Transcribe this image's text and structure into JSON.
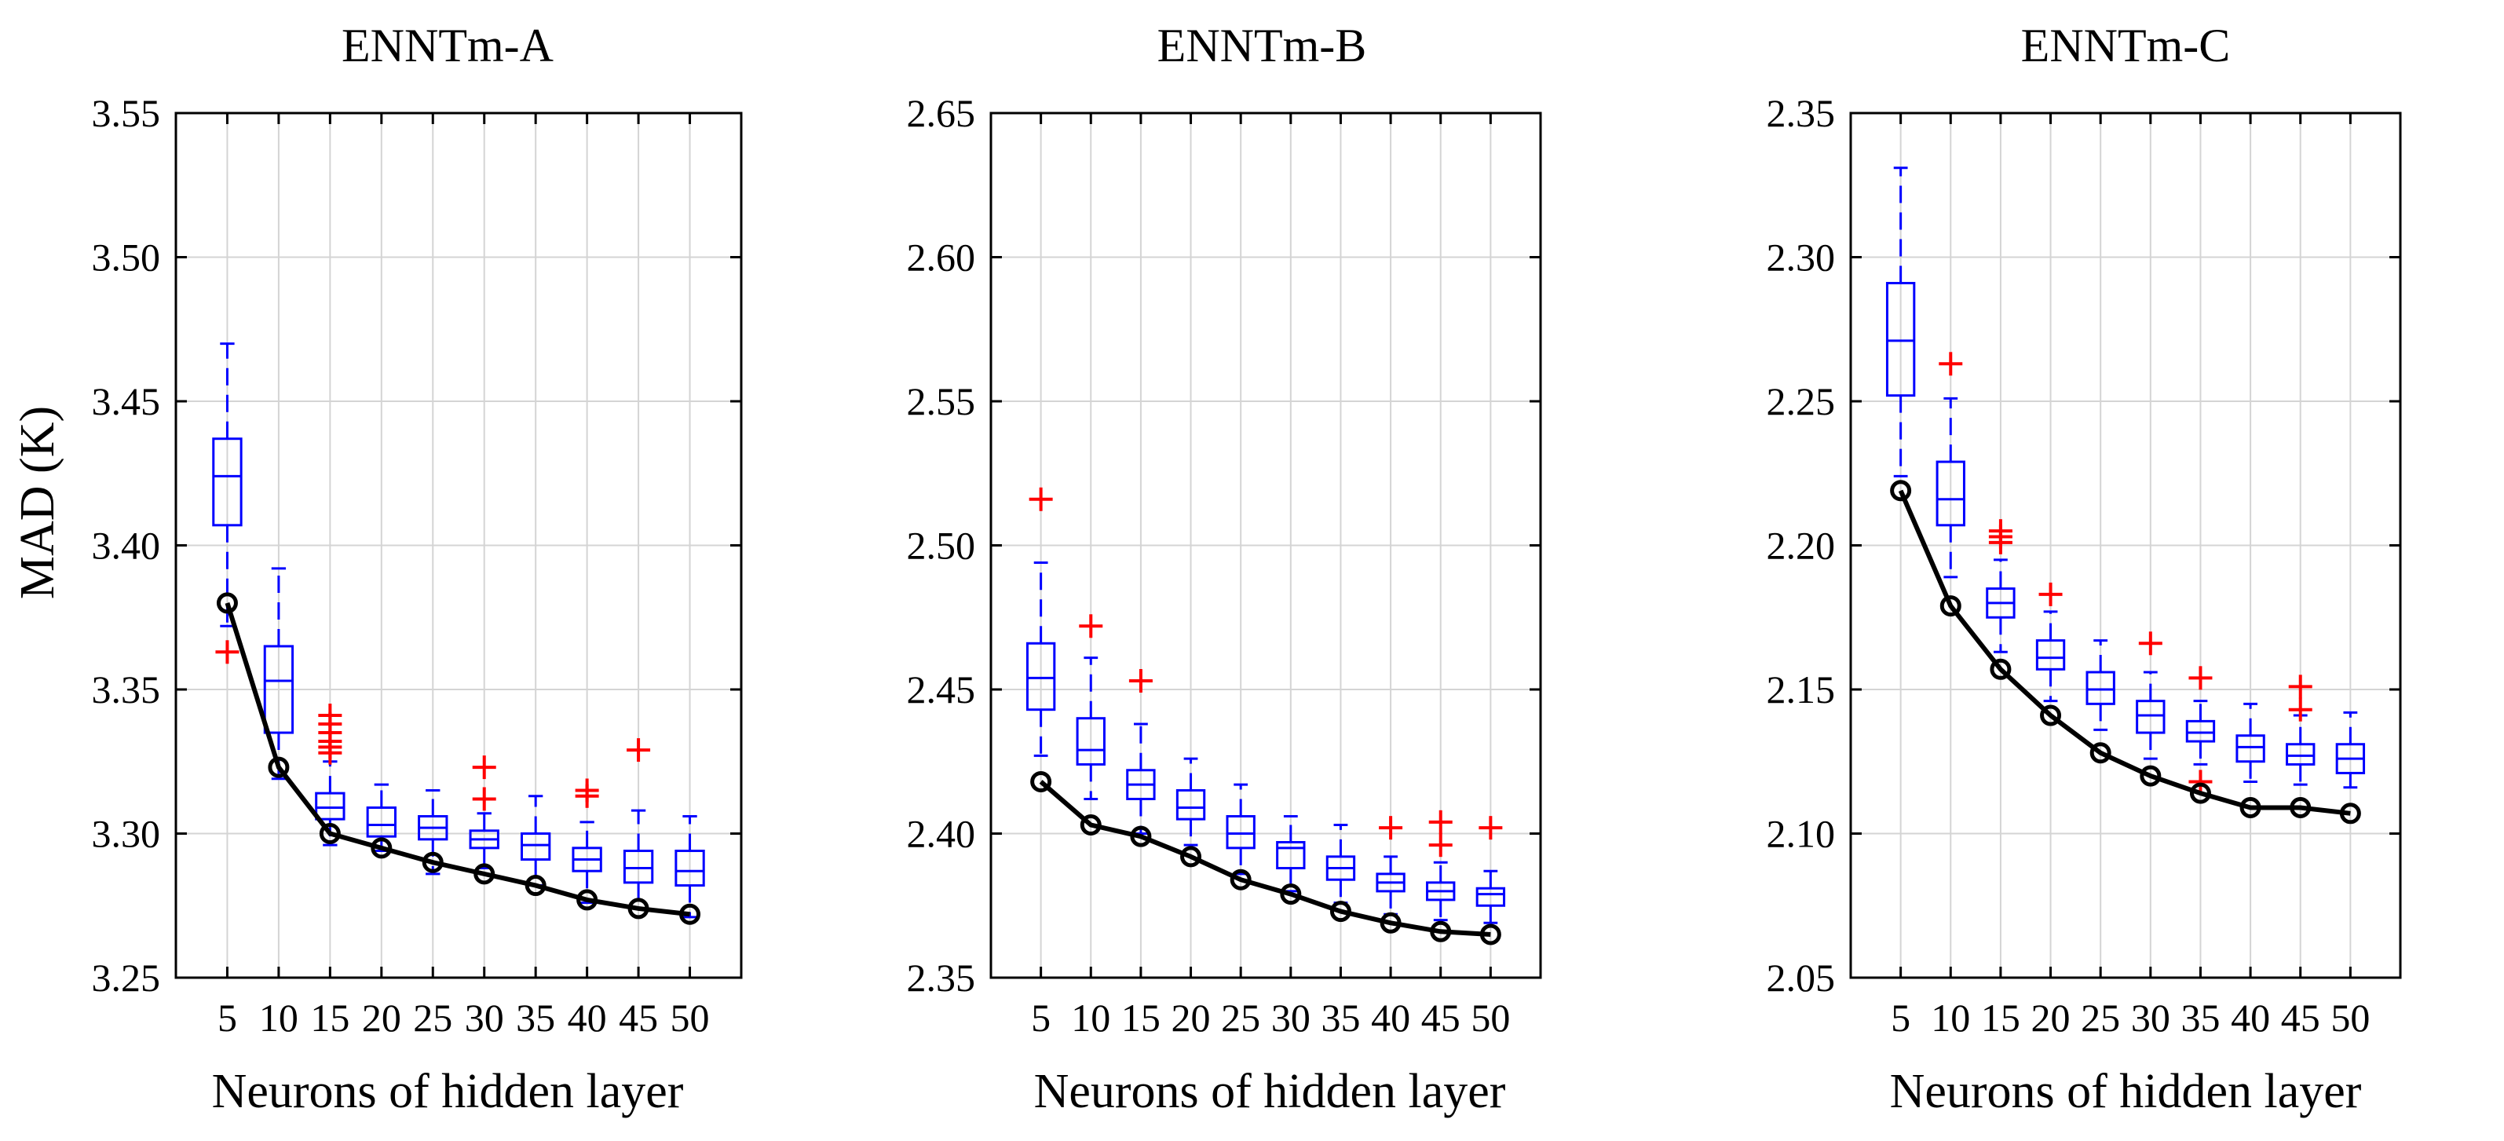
{
  "chart_data": [
    {
      "type": "box",
      "title": "ENNTm-A",
      "xlabel": "Neurons of hidden layer",
      "ylabel": "MAD (K)",
      "x": [
        5,
        10,
        15,
        20,
        25,
        30,
        35,
        40,
        45,
        50
      ],
      "ylim": [
        3.25,
        3.55
      ],
      "yticks": [
        "3.25",
        "3.30",
        "3.35",
        "3.40",
        "3.45",
        "3.50",
        "3.55"
      ],
      "boxes": [
        {
          "x": 5,
          "q1": 3.407,
          "median": 3.424,
          "q3": 3.437,
          "whisker_low": 3.372,
          "whisker_high": 3.47,
          "outliers": [
            3.363
          ]
        },
        {
          "x": 10,
          "q1": 3.335,
          "median": 3.353,
          "q3": 3.365,
          "whisker_low": 3.319,
          "whisker_high": 3.392,
          "outliers": []
        },
        {
          "x": 15,
          "q1": 3.305,
          "median": 3.309,
          "q3": 3.314,
          "whisker_low": 3.296,
          "whisker_high": 3.325,
          "outliers": [
            3.328,
            3.33,
            3.332,
            3.335,
            3.338,
            3.341
          ]
        },
        {
          "x": 20,
          "q1": 3.299,
          "median": 3.303,
          "q3": 3.309,
          "whisker_low": 3.294,
          "whisker_high": 3.317,
          "outliers": []
        },
        {
          "x": 25,
          "q1": 3.298,
          "median": 3.302,
          "q3": 3.306,
          "whisker_low": 3.286,
          "whisker_high": 3.315,
          "outliers": []
        },
        {
          "x": 30,
          "q1": 3.295,
          "median": 3.298,
          "q3": 3.301,
          "whisker_low": 3.288,
          "whisker_high": 3.307,
          "outliers": [
            3.312,
            3.323
          ]
        },
        {
          "x": 35,
          "q1": 3.291,
          "median": 3.296,
          "q3": 3.3,
          "whisker_low": 3.282,
          "whisker_high": 3.313,
          "outliers": []
        },
        {
          "x": 40,
          "q1": 3.287,
          "median": 3.291,
          "q3": 3.295,
          "whisker_low": 3.276,
          "whisker_high": 3.304,
          "outliers": [
            3.313,
            3.315
          ]
        },
        {
          "x": 45,
          "q1": 3.283,
          "median": 3.288,
          "q3": 3.294,
          "whisker_low": 3.274,
          "whisker_high": 3.308,
          "outliers": [
            3.329
          ]
        },
        {
          "x": 50,
          "q1": 3.282,
          "median": 3.287,
          "q3": 3.294,
          "whisker_low": 3.271,
          "whisker_high": 3.306,
          "outliers": []
        }
      ],
      "min_line": [
        3.38,
        3.323,
        3.3,
        3.295,
        3.29,
        3.286,
        3.282,
        3.277,
        3.274,
        3.272
      ]
    },
    {
      "type": "box",
      "title": "ENNTm-B",
      "xlabel": "Neurons of hidden layer",
      "ylabel": "",
      "x": [
        5,
        10,
        15,
        20,
        25,
        30,
        35,
        40,
        45,
        50
      ],
      "ylim": [
        2.35,
        2.65
      ],
      "yticks": [
        "2.35",
        "2.40",
        "2.45",
        "2.50",
        "2.55",
        "2.60",
        "2.65"
      ],
      "boxes": [
        {
          "x": 5,
          "q1": 2.443,
          "median": 2.454,
          "q3": 2.466,
          "whisker_low": 2.427,
          "whisker_high": 2.494,
          "outliers": [
            2.516
          ]
        },
        {
          "x": 10,
          "q1": 2.424,
          "median": 2.429,
          "q3": 2.44,
          "whisker_low": 2.412,
          "whisker_high": 2.461,
          "outliers": [
            2.472
          ]
        },
        {
          "x": 15,
          "q1": 2.412,
          "median": 2.417,
          "q3": 2.422,
          "whisker_low": 2.4,
          "whisker_high": 2.438,
          "outliers": [
            2.453
          ]
        },
        {
          "x": 20,
          "q1": 2.405,
          "median": 2.409,
          "q3": 2.415,
          "whisker_low": 2.396,
          "whisker_high": 2.426,
          "outliers": []
        },
        {
          "x": 25,
          "q1": 2.395,
          "median": 2.4,
          "q3": 2.406,
          "whisker_low": 2.386,
          "whisker_high": 2.417,
          "outliers": []
        },
        {
          "x": 30,
          "q1": 2.388,
          "median": 2.395,
          "q3": 2.397,
          "whisker_low": 2.38,
          "whisker_high": 2.406,
          "outliers": []
        },
        {
          "x": 35,
          "q1": 2.384,
          "median": 2.388,
          "q3": 2.392,
          "whisker_low": 2.376,
          "whisker_high": 2.403,
          "outliers": []
        },
        {
          "x": 40,
          "q1": 2.38,
          "median": 2.383,
          "q3": 2.386,
          "whisker_low": 2.372,
          "whisker_high": 2.392,
          "outliers": [
            2.402
          ]
        },
        {
          "x": 45,
          "q1": 2.377,
          "median": 2.38,
          "q3": 2.383,
          "whisker_low": 2.37,
          "whisker_high": 2.39,
          "outliers": [
            2.396,
            2.404
          ]
        },
        {
          "x": 50,
          "q1": 2.375,
          "median": 2.379,
          "q3": 2.381,
          "whisker_low": 2.369,
          "whisker_high": 2.387,
          "outliers": [
            2.402
          ]
        }
      ],
      "min_line": [
        2.418,
        2.403,
        2.399,
        2.392,
        2.384,
        2.379,
        2.373,
        2.369,
        2.366,
        2.365
      ]
    },
    {
      "type": "box",
      "title": "ENNTm-C",
      "xlabel": "Neurons of hidden layer",
      "ylabel": "",
      "x": [
        5,
        10,
        15,
        20,
        25,
        30,
        35,
        40,
        45,
        50
      ],
      "ylim": [
        2.05,
        2.35
      ],
      "yticks": [
        "2.05",
        "2.10",
        "2.15",
        "2.20",
        "2.25",
        "2.30",
        "2.35"
      ],
      "boxes": [
        {
          "x": 5,
          "q1": 2.252,
          "median": 2.271,
          "q3": 2.291,
          "whisker_low": 2.224,
          "whisker_high": 2.331,
          "outliers": []
        },
        {
          "x": 10,
          "q1": 2.207,
          "median": 2.216,
          "q3": 2.229,
          "whisker_low": 2.189,
          "whisker_high": 2.251,
          "outliers": [
            2.263
          ]
        },
        {
          "x": 15,
          "q1": 2.175,
          "median": 2.18,
          "q3": 2.185,
          "whisker_low": 2.163,
          "whisker_high": 2.195,
          "outliers": [
            2.201,
            2.203,
            2.205
          ]
        },
        {
          "x": 20,
          "q1": 2.157,
          "median": 2.161,
          "q3": 2.167,
          "whisker_low": 2.146,
          "whisker_high": 2.177,
          "outliers": [
            2.183
          ]
        },
        {
          "x": 25,
          "q1": 2.145,
          "median": 2.15,
          "q3": 2.156,
          "whisker_low": 2.136,
          "whisker_high": 2.167,
          "outliers": []
        },
        {
          "x": 30,
          "q1": 2.135,
          "median": 2.141,
          "q3": 2.146,
          "whisker_low": 2.126,
          "whisker_high": 2.156,
          "outliers": [
            2.166
          ]
        },
        {
          "x": 35,
          "q1": 2.132,
          "median": 2.135,
          "q3": 2.139,
          "whisker_low": 2.124,
          "whisker_high": 2.146,
          "outliers": [
            2.118,
            2.154
          ]
        },
        {
          "x": 40,
          "q1": 2.125,
          "median": 2.13,
          "q3": 2.134,
          "whisker_low": 2.118,
          "whisker_high": 2.145,
          "outliers": []
        },
        {
          "x": 45,
          "q1": 2.124,
          "median": 2.127,
          "q3": 2.131,
          "whisker_low": 2.117,
          "whisker_high": 2.141,
          "outliers": [
            2.143,
            2.151
          ]
        },
        {
          "x": 50,
          "q1": 2.121,
          "median": 2.126,
          "q3": 2.131,
          "whisker_low": 2.116,
          "whisker_high": 2.142,
          "outliers": []
        }
      ],
      "min_line": [
        2.219,
        2.179,
        2.157,
        2.141,
        2.128,
        2.12,
        2.114,
        2.109,
        2.109,
        2.107
      ]
    }
  ]
}
